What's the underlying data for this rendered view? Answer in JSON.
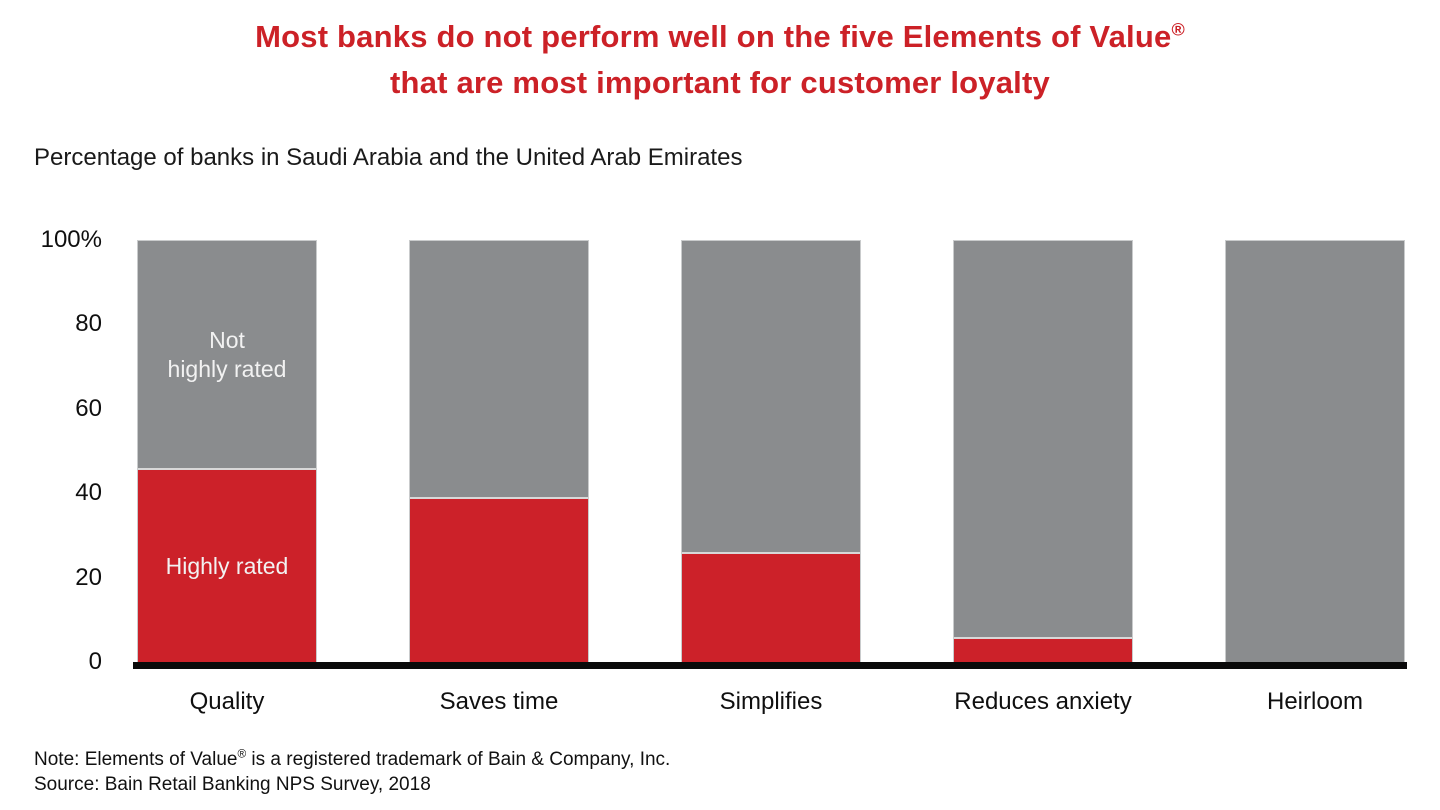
{
  "title": {
    "line1_text": "Most banks do not perform well on the five Elements of Value",
    "line1_sup": "®",
    "line2_text": "that are most important for customer loyalty"
  },
  "subtitle": "Percentage of banks in Saudi Arabia and the United Arab Emirates",
  "footnotes": {
    "note_pre": "Note: Elements of Value",
    "note_sup": "®",
    "note_post": " is a registered trademark of Bain & Company, Inc.",
    "source": "Source: Bain Retail Banking NPS Survey, 2018"
  },
  "colors": {
    "title_red": "#cc2127",
    "highly_rated_red": "#cc2129",
    "not_highly_rated_gray": "#8a8c8e",
    "segment_divider": "#d8d8d8",
    "axis_line": "#0a0a0a",
    "bar_label_white": "#f2f2f2",
    "text_black": "#111111"
  },
  "chart_data": {
    "type": "bar",
    "stacked": true,
    "title": "Most banks do not perform well on the five Elements of Value® that are most important for customer loyalty",
    "units_label": "Percentage of banks in Saudi Arabia and the United Arab Emirates",
    "categories": [
      "Quality",
      "Saves time",
      "Simplifies",
      "Reduces anxiety",
      "Heirloom"
    ],
    "series": [
      {
        "name": "Highly rated",
        "color_key": "highly_rated_red",
        "values": [
          46,
          39,
          26,
          6,
          0
        ]
      },
      {
        "name": "Not highly rated",
        "color_key": "not_highly_rated_gray",
        "values": [
          54,
          61,
          74,
          94,
          100
        ]
      }
    ],
    "in_bar_labels": {
      "not_highly_rated": "Not\nhighly rated",
      "highly_rated": "Highly rated",
      "shown_on_category": "Quality"
    },
    "yticks": [
      {
        "label": "100%",
        "value": 100
      },
      {
        "label": "80",
        "value": 80
      },
      {
        "label": "60",
        "value": 60
      },
      {
        "label": "40",
        "value": 40
      },
      {
        "label": "20",
        "value": 20
      },
      {
        "label": "0",
        "value": 0
      }
    ],
    "ylim": [
      0,
      100
    ],
    "grid": false,
    "legend_position": "none"
  }
}
